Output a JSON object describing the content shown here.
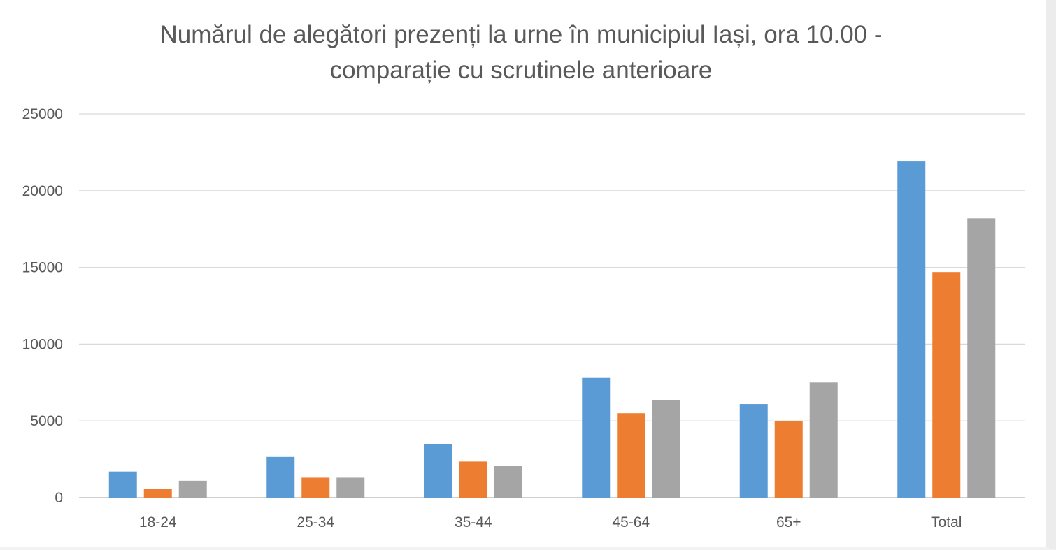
{
  "chart_data": {
    "type": "bar",
    "title_lines": [
      "Numărul de alegători prezenți la urne în municipiul Iași, ora 10.00 -",
      "comparație cu scrutinele anterioare"
    ],
    "categories": [
      "18-24",
      "25-34",
      "35-44",
      "45-64",
      "65+",
      "Total"
    ],
    "series": [
      {
        "color": "#5b9bd5",
        "values": [
          1700,
          2650,
          3500,
          7800,
          6100,
          21900
        ]
      },
      {
        "color": "#ed7d31",
        "values": [
          550,
          1300,
          2350,
          5500,
          5000,
          14700
        ]
      },
      {
        "color": "#a5a5a5",
        "values": [
          1100,
          1300,
          2050,
          6350,
          7500,
          18200
        ]
      }
    ],
    "ylim": [
      0,
      25000
    ],
    "yticks": [
      "0",
      "5000",
      "10000",
      "15000",
      "20000",
      "25000"
    ],
    "xlabel": "",
    "ylabel": "",
    "grid": true,
    "legend": "none"
  }
}
